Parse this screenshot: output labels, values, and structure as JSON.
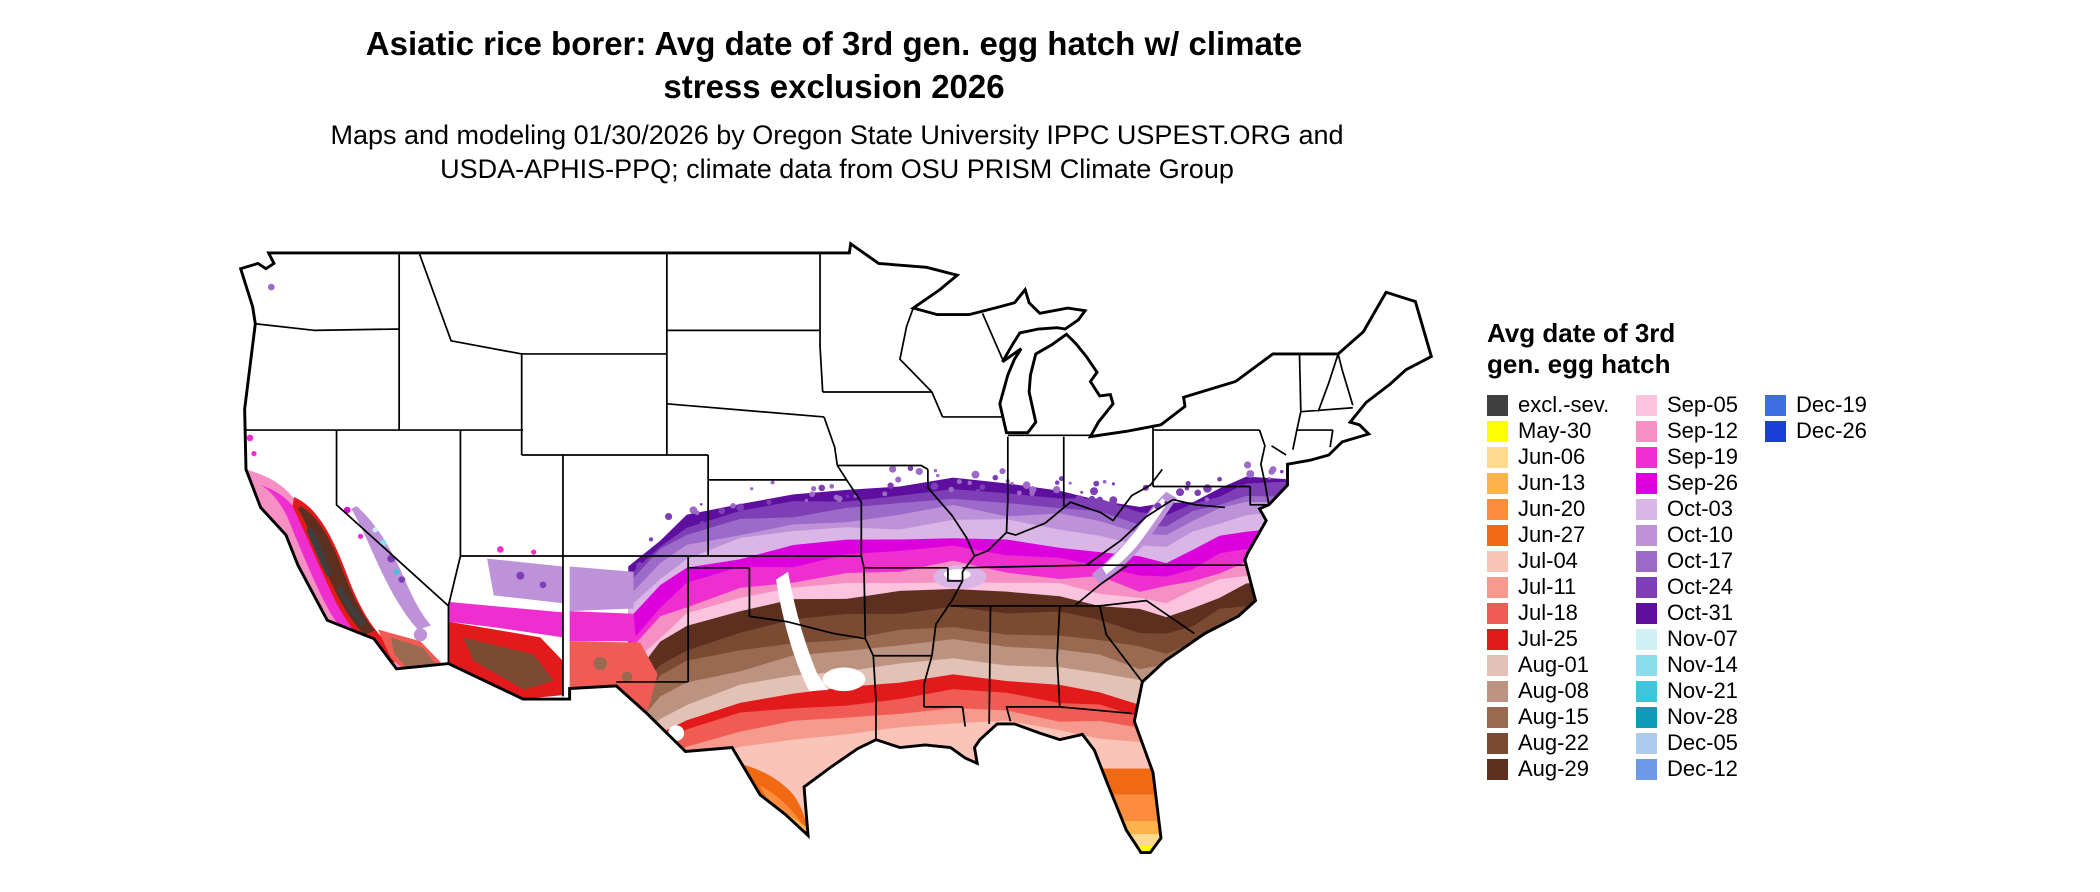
{
  "title": {
    "line1": "Asiatic rice borer: Avg date of 3rd gen. egg hatch w/ climate",
    "line2": "stress exclusion 2026"
  },
  "subtitle": {
    "line1": "Maps and modeling 01/30/2026 by Oregon State University IPPC USPEST.ORG and",
    "line2": "USDA-APHIS-PPQ; climate data from OSU PRISM Climate Group"
  },
  "legend": {
    "title_line1": "Avg date of 3rd",
    "title_line2": "gen. egg hatch",
    "columns": [
      {
        "entries": [
          {
            "label": "excl.-sev.",
            "color": "#3F3F3F"
          },
          {
            "label": "May-30",
            "color": "#FFFF00"
          },
          {
            "label": "Jun-06",
            "color": "#FED98E"
          },
          {
            "label": "Jun-13",
            "color": "#FEB24C"
          },
          {
            "label": "Jun-20",
            "color": "#FD8D3C"
          },
          {
            "label": "Jun-27",
            "color": "#F16913"
          },
          {
            "label": "Jul-04",
            "color": "#FAC5B8"
          },
          {
            "label": "Jul-11",
            "color": "#F69A8D"
          },
          {
            "label": "Jul-18",
            "color": "#F05C54"
          },
          {
            "label": "Jul-25",
            "color": "#E31A1C"
          },
          {
            "label": "Aug-01",
            "color": "#E2C2B6"
          },
          {
            "label": "Aug-08",
            "color": "#BC9380"
          },
          {
            "label": "Aug-15",
            "color": "#9A6A50"
          },
          {
            "label": "Aug-22",
            "color": "#7B4A32"
          },
          {
            "label": "Aug-29",
            "color": "#5D2F1E"
          }
        ]
      },
      {
        "entries": [
          {
            "label": "Sep-05",
            "color": "#FBC3DD"
          },
          {
            "label": "Sep-12",
            "color": "#F58FC4"
          },
          {
            "label": "Sep-19",
            "color": "#EE2ECE"
          },
          {
            "label": "Sep-26",
            "color": "#DC00DC"
          },
          {
            "label": "Oct-03",
            "color": "#D9B6E6"
          },
          {
            "label": "Oct-10",
            "color": "#BD92D8"
          },
          {
            "label": "Oct-17",
            "color": "#9C6AC8"
          },
          {
            "label": "Oct-24",
            "color": "#7D3EB6"
          },
          {
            "label": "Oct-31",
            "color": "#5E0FA0"
          },
          {
            "label": "Nov-07",
            "color": "#CFF0F5"
          },
          {
            "label": "Nov-14",
            "color": "#8ADEEB"
          },
          {
            "label": "Nov-21",
            "color": "#3EC5DB"
          },
          {
            "label": "Nov-28",
            "color": "#0C9BB8"
          },
          {
            "label": "Dec-05",
            "color": "#AECAEC"
          },
          {
            "label": "Dec-12",
            "color": "#6C99E8"
          }
        ]
      },
      {
        "entries": [
          {
            "label": "Dec-19",
            "color": "#3E6EE0"
          },
          {
            "label": "Dec-26",
            "color": "#1C3ED8"
          }
        ]
      }
    ]
  },
  "chart_data": {
    "type": "map",
    "subtype": "choropleth",
    "region": "Contiguous United States",
    "variable": "Avg date of 3rd gen. egg hatch",
    "year": "2026",
    "gradient_north_to_south": [
      "white (no hatch / excluded)",
      "October dates (purples)",
      "September dates (magenta, pink)",
      "August dates (browns)",
      "July dates (reds, salmon)",
      "June dates (oranges, south Texas and Florida)",
      "May-30 (yellow, southern tip of Florida)"
    ]
  }
}
